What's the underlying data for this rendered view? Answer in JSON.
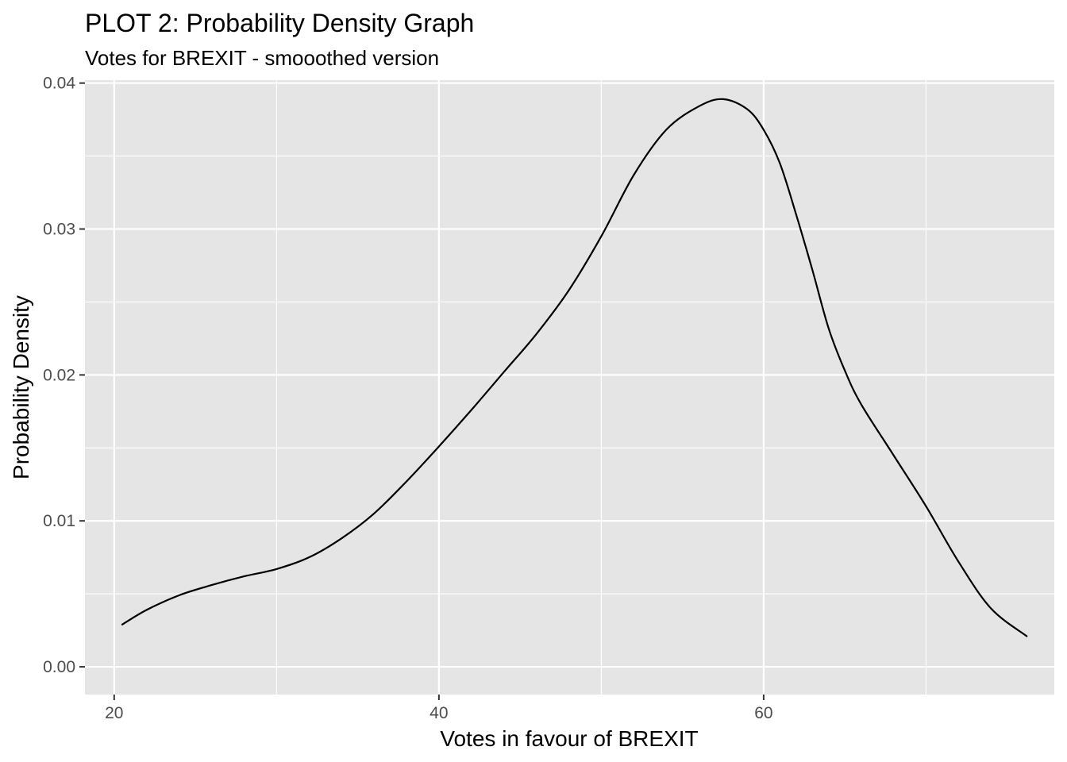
{
  "chart_data": {
    "type": "line",
    "title": "PLOT 2: Probability Density Graph",
    "subtitle": "Votes for BREXIT - smooothed version",
    "xlabel": "Votes in favour of BREXIT",
    "ylabel": "Probability Density",
    "xlim": [
      18.2,
      77.9
    ],
    "ylim": [
      -0.0019,
      0.0402
    ],
    "x_ticks": [
      20,
      40,
      60
    ],
    "x_tick_labels": [
      "20",
      "40",
      "60"
    ],
    "x_minor_ticks": [
      30,
      50,
      70
    ],
    "y_ticks": [
      0.0,
      0.01,
      0.02,
      0.03,
      0.04
    ],
    "y_tick_labels": [
      "0.00",
      "0.01",
      "0.02",
      "0.03",
      "0.04"
    ],
    "y_minor_ticks": [
      0.005,
      0.015,
      0.025,
      0.035
    ],
    "grid": true,
    "series": [
      {
        "color": "#000000",
        "x": [
          20.5,
          22,
          24,
          26,
          28,
          30,
          32,
          34,
          36,
          38,
          40,
          42,
          44,
          46,
          48,
          50,
          52,
          54,
          56,
          57.5,
          59,
          60,
          61,
          62,
          63,
          64,
          65,
          66,
          68,
          70,
          72,
          74,
          76.2
        ],
        "y": [
          0.0029,
          0.0039,
          0.0049,
          0.0056,
          0.0062,
          0.0067,
          0.0075,
          0.0088,
          0.0105,
          0.0127,
          0.0151,
          0.0176,
          0.0202,
          0.0228,
          0.0258,
          0.0295,
          0.0337,
          0.0368,
          0.0384,
          0.0389,
          0.0382,
          0.0368,
          0.0345,
          0.031,
          0.0272,
          0.0232,
          0.0203,
          0.018,
          0.0145,
          0.011,
          0.0072,
          0.004,
          0.0021
        ]
      }
    ]
  },
  "colors": {
    "panel_background": "#e5e5e5",
    "grid": "#ffffff",
    "tick_text": "#4d4d4d",
    "title_text": "#000000"
  }
}
